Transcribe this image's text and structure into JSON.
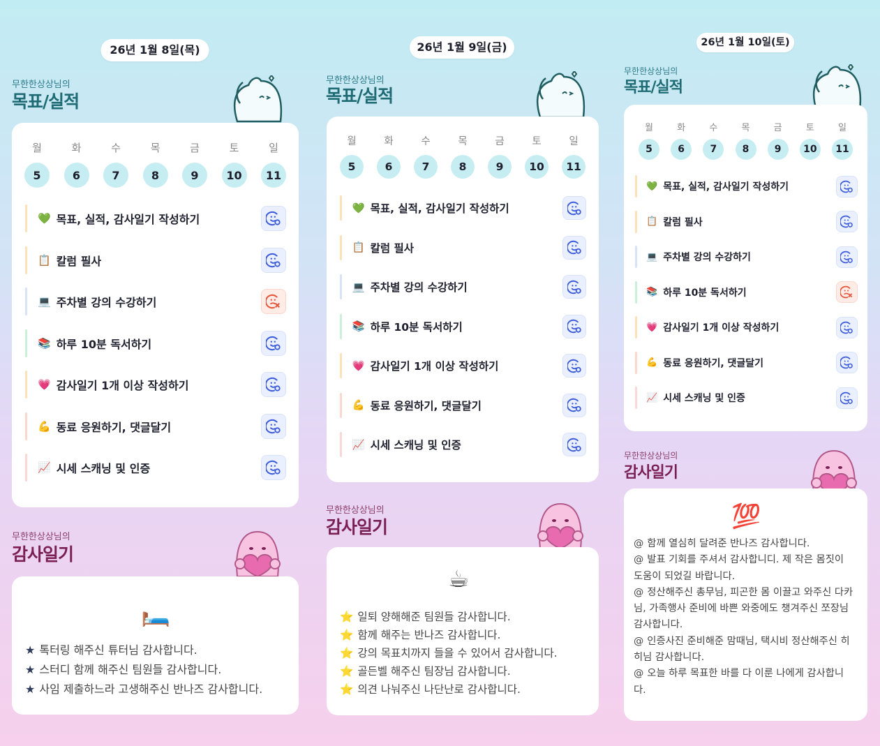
{
  "owner_label": "무한한상상님의",
  "goals_title": "목표/실적",
  "gratitude_title": "감사일기",
  "status_icons": {
    "done": "smile-check-icon",
    "fail": "frown-x-icon"
  },
  "colors": {
    "done": "#3b5bdb",
    "fail": "#e8533a",
    "date_circle": "#c6eef2"
  },
  "days": [
    {
      "date_label": "26년 1월 8일(목)",
      "weekdays": [
        "월",
        "화",
        "수",
        "목",
        "금",
        "토",
        "일"
      ],
      "dates": [
        "5",
        "6",
        "7",
        "8",
        "9",
        "10",
        "11"
      ],
      "goals": [
        {
          "emoji": "💚",
          "label": "목표, 실적, 감사일기 작성하기",
          "status": "done",
          "bar": "#fde1b8"
        },
        {
          "emoji": "📋",
          "label": "칼럼 필사",
          "status": "done",
          "bar": "#fde1b8"
        },
        {
          "emoji": "💻",
          "label": "주차별 강의 수강하기",
          "status": "fail",
          "bar": "#d7e3fb"
        },
        {
          "emoji": "📚",
          "label": "하루 10분 독서하기",
          "status": "done",
          "bar": "#c9f0d8"
        },
        {
          "emoji": "💗",
          "label": "감사일기 1개 이상 작성하기",
          "status": "done",
          "bar": "#fde1b8"
        },
        {
          "emoji": "💪",
          "label": "동료 응원하기, 댓글달기",
          "status": "done",
          "bar": "#fbd7cc"
        },
        {
          "emoji": "📈",
          "label": "시세 스캐닝 및 인증",
          "status": "done",
          "bar": "#fbd7d7"
        }
      ],
      "gratitude_emoji": "🛏️",
      "gratitude_bullet": "★",
      "gratitude": [
        "톡터링 해주신 튜터님 감사합니다.",
        "스터디 함께 해주신 팀원들 감사합니다.",
        "사임 제출하느라 고생해주신 반나즈 감사합니다."
      ]
    },
    {
      "date_label": "26년 1월 9일(금)",
      "weekdays": [
        "월",
        "화",
        "수",
        "목",
        "금",
        "토",
        "일"
      ],
      "dates": [
        "5",
        "6",
        "7",
        "8",
        "9",
        "10",
        "11"
      ],
      "goals": [
        {
          "emoji": "💚",
          "label": "목표, 실적, 감사일기 작성하기",
          "status": "done",
          "bar": "#fde1b8"
        },
        {
          "emoji": "📋",
          "label": "칼럼 필사",
          "status": "done",
          "bar": "#fde1b8"
        },
        {
          "emoji": "💻",
          "label": "주차별 강의 수강하기",
          "status": "done",
          "bar": "#d7e3fb"
        },
        {
          "emoji": "📚",
          "label": "하루 10분 독서하기",
          "status": "done",
          "bar": "#c9f0d8"
        },
        {
          "emoji": "💗",
          "label": "감사일기 1개 이상 작성하기",
          "status": "done",
          "bar": "#fde1b8"
        },
        {
          "emoji": "💪",
          "label": "동료 응원하기, 댓글달기",
          "status": "done",
          "bar": "#fbd7cc"
        },
        {
          "emoji": "📈",
          "label": "시세 스캐닝 및 인증",
          "status": "done",
          "bar": "#fbd7d7"
        }
      ],
      "gratitude_emoji": "☕",
      "gratitude_bullet": "⭐",
      "gratitude": [
        "일퇴 양해해준 팀원들 감사합니다.",
        "함께 해주는 반나즈 감사합니다.",
        "강의 목표치까지 들을 수 있어서 감사합니다.",
        "골든벨 해주신 팀장님 감사합니다.",
        "의견 나눠주신 나단난로 감사합니다."
      ]
    },
    {
      "date_label": "26년 1월 10일(토)",
      "weekdays": [
        "월",
        "화",
        "수",
        "목",
        "금",
        "토",
        "일"
      ],
      "dates": [
        "5",
        "6",
        "7",
        "8",
        "9",
        "10",
        "11"
      ],
      "goals": [
        {
          "emoji": "💚",
          "label": "목표, 실적, 감사일기 작성하기",
          "status": "done",
          "bar": "#fde1b8"
        },
        {
          "emoji": "📋",
          "label": "칼럼 필사",
          "status": "done",
          "bar": "#fde1b8"
        },
        {
          "emoji": "💻",
          "label": "주차별 강의 수강하기",
          "status": "done",
          "bar": "#d7e3fb"
        },
        {
          "emoji": "📚",
          "label": "하루 10분 독서하기",
          "status": "fail",
          "bar": "#c9f0d8"
        },
        {
          "emoji": "💗",
          "label": "감사일기 1개 이상 작성하기",
          "status": "done",
          "bar": "#fde1b8"
        },
        {
          "emoji": "💪",
          "label": "동료 응원하기, 댓글달기",
          "status": "done",
          "bar": "#fbd7cc"
        },
        {
          "emoji": "📈",
          "label": "시세 스캐닝 및 인증",
          "status": "done",
          "bar": "#fbd7d7"
        }
      ],
      "gratitude_emoji": "💯",
      "gratitude_bullet": "@",
      "gratitude": [
        "함께 열심히 달려준 반나즈 감사합니다.",
        "발표 기회를 주셔서 감사합니디. 제 작은 몸짓이 도움이 되었길 바랍니다.",
        "정산해주신 총무님, 피곤한 몸 이끌고 와주신 다카님, 가족행사 준비에 바쁜 와중에도 챙겨주신 쪼장님 감사합니다.",
        "인증사진 준비해준 맘때님, 택시비 정산해주신 히히님 감사합니다.",
        "오늘 하루 목표한 바를 다 이룬 나에게 감사합니다."
      ]
    }
  ]
}
